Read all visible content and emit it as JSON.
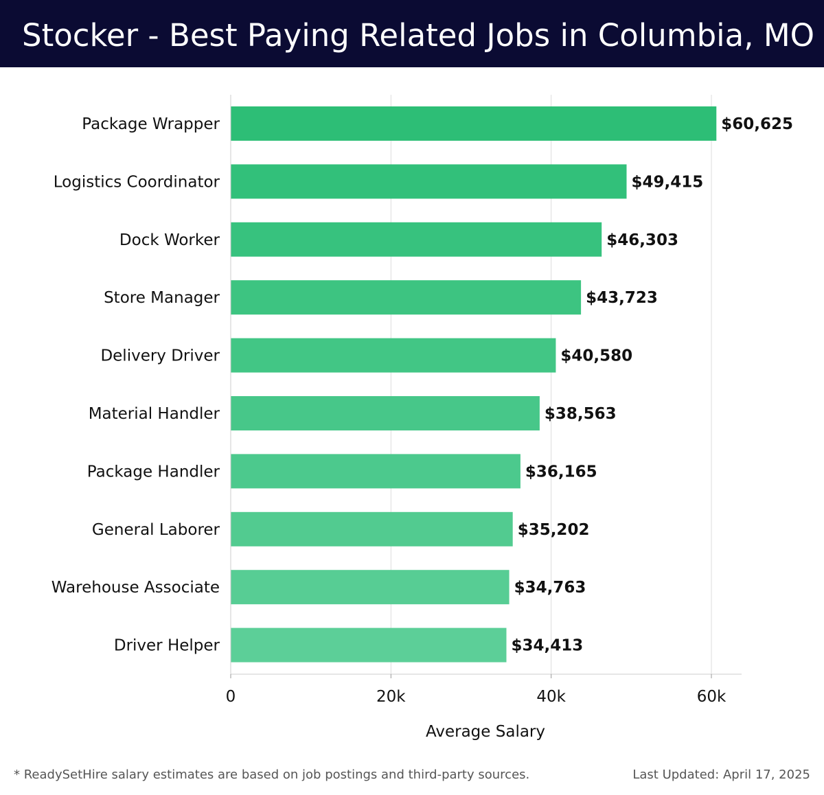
{
  "header": {
    "title": "Stocker - Best Paying Related Jobs in Columbia, MO"
  },
  "chart_data": {
    "type": "bar",
    "orientation": "horizontal",
    "title": "Stocker - Best Paying Related Jobs in Columbia, MO",
    "xlabel": "Average Salary",
    "ylabel": "",
    "categories": [
      "Package Wrapper",
      "Logistics Coordinator",
      "Dock Worker",
      "Store Manager",
      "Delivery Driver",
      "Material Handler",
      "Package Handler",
      "General Laborer",
      "Warehouse Associate",
      "Driver Helper"
    ],
    "values": [
      60625,
      49415,
      46303,
      43723,
      40580,
      38563,
      36165,
      35202,
      34763,
      34413
    ],
    "value_labels": [
      "$60,625",
      "$49,415",
      "$46,303",
      "$43,723",
      "$40,580",
      "$38,563",
      "$36,165",
      "$35,202",
      "$34,763",
      "$34,413"
    ],
    "xlim": [
      0,
      64000
    ],
    "xticks": [
      0,
      20000,
      40000,
      60000
    ],
    "xtick_labels": [
      "0",
      "20k",
      "40k",
      "60k"
    ],
    "grid": "vertical",
    "colors": {
      "bar_top": "#2dbe76",
      "bar_bottom": "#5ccf98",
      "gridline": "#dddddd",
      "axis": "#cccccc",
      "header_bg": "#0b0b33"
    }
  },
  "footer": {
    "note": "* ReadySetHire salary estimates are based on job postings and third-party sources.",
    "updated": "Last Updated: April 17, 2025"
  }
}
